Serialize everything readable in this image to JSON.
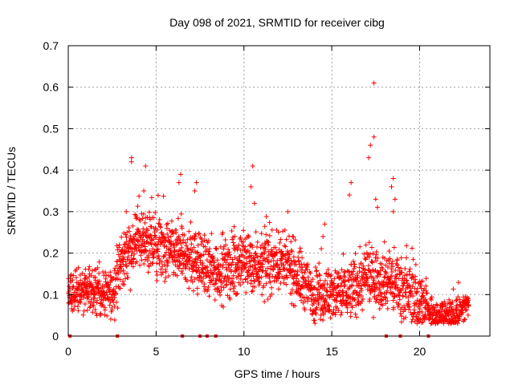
{
  "chart_data": {
    "type": "scatter",
    "title": "Day 098 of 2021, SRMTID for receiver cibg",
    "xlabel": "GPS time / hours",
    "ylabel": "SRMTID / TECUs",
    "xlim": [
      0,
      24
    ],
    "ylim": [
      0,
      0.7
    ],
    "xticks": [
      0,
      5,
      10,
      15,
      20
    ],
    "xtick_labels": [
      "0",
      "5",
      "10",
      "15",
      "20"
    ],
    "yticks": [
      0,
      0.1,
      0.2,
      0.3,
      0.4,
      0.5,
      0.6,
      0.7
    ],
    "ytick_labels": [
      "0",
      "0.1",
      "0.2",
      "0.3",
      "0.4",
      "0.5",
      "0.6",
      "0.7"
    ],
    "grid": true,
    "marker": "+",
    "marker_color": "#ff0000",
    "zero_markers_x": [
      0.1,
      2.8,
      6.5,
      7.5,
      7.9,
      8.4,
      18.1,
      18.9,
      20.5
    ],
    "series": [
      {
        "name": "SRMTID",
        "profile": [
          {
            "x": 0.0,
            "y": 0.1
          },
          {
            "x": 1.0,
            "y": 0.11
          },
          {
            "x": 2.5,
            "y": 0.1
          },
          {
            "x": 3.0,
            "y": 0.18
          },
          {
            "x": 4.0,
            "y": 0.23
          },
          {
            "x": 5.0,
            "y": 0.21
          },
          {
            "x": 6.0,
            "y": 0.2
          },
          {
            "x": 7.0,
            "y": 0.19
          },
          {
            "x": 8.0,
            "y": 0.16
          },
          {
            "x": 9.0,
            "y": 0.16
          },
          {
            "x": 10.0,
            "y": 0.18
          },
          {
            "x": 11.0,
            "y": 0.17
          },
          {
            "x": 12.0,
            "y": 0.18
          },
          {
            "x": 13.0,
            "y": 0.15
          },
          {
            "x": 14.0,
            "y": 0.1
          },
          {
            "x": 15.0,
            "y": 0.1
          },
          {
            "x": 16.0,
            "y": 0.11
          },
          {
            "x": 17.0,
            "y": 0.14
          },
          {
            "x": 18.0,
            "y": 0.14
          },
          {
            "x": 19.0,
            "y": 0.12
          },
          {
            "x": 20.0,
            "y": 0.08
          },
          {
            "x": 21.0,
            "y": 0.05
          },
          {
            "x": 22.0,
            "y": 0.05
          },
          {
            "x": 22.8,
            "y": 0.08
          }
        ],
        "spread": 0.04,
        "x_end": 22.8,
        "peaks": [
          {
            "x": 3.6,
            "y": 0.43
          },
          {
            "x": 3.6,
            "y": 0.42
          },
          {
            "x": 4.4,
            "y": 0.41
          },
          {
            "x": 4.3,
            "y": 0.35
          },
          {
            "x": 3.3,
            "y": 0.3
          },
          {
            "x": 6.4,
            "y": 0.39
          },
          {
            "x": 6.3,
            "y": 0.37
          },
          {
            "x": 7.3,
            "y": 0.37
          },
          {
            "x": 7.2,
            "y": 0.35
          },
          {
            "x": 10.5,
            "y": 0.41
          },
          {
            "x": 10.4,
            "y": 0.36
          },
          {
            "x": 10.6,
            "y": 0.32
          },
          {
            "x": 12.5,
            "y": 0.3
          },
          {
            "x": 14.6,
            "y": 0.27
          },
          {
            "x": 14.5,
            "y": 0.24
          },
          {
            "x": 16.1,
            "y": 0.37
          },
          {
            "x": 16.0,
            "y": 0.34
          },
          {
            "x": 17.1,
            "y": 0.43
          },
          {
            "x": 17.2,
            "y": 0.46
          },
          {
            "x": 17.4,
            "y": 0.48
          },
          {
            "x": 17.4,
            "y": 0.61
          },
          {
            "x": 17.5,
            "y": 0.33
          },
          {
            "x": 17.6,
            "y": 0.31
          },
          {
            "x": 18.5,
            "y": 0.38
          },
          {
            "x": 18.4,
            "y": 0.36
          },
          {
            "x": 18.6,
            "y": 0.33
          },
          {
            "x": 18.5,
            "y": 0.3
          }
        ]
      }
    ]
  }
}
